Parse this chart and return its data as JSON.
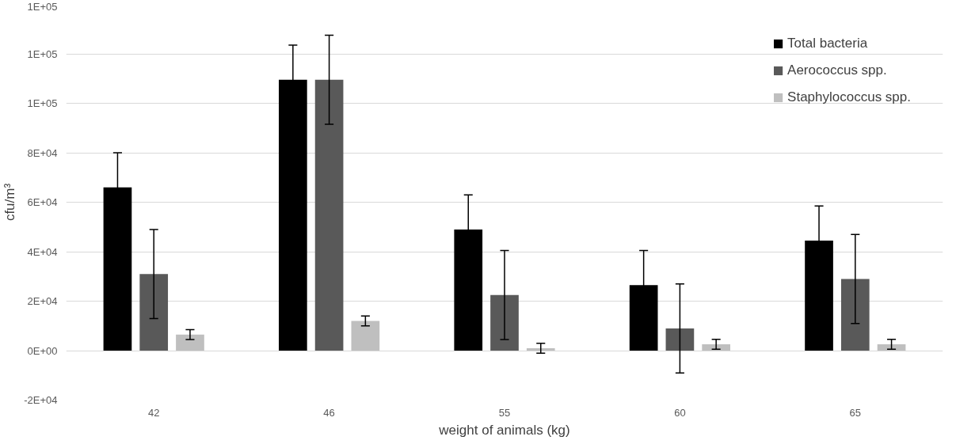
{
  "chart_data": {
    "type": "bar",
    "xlabel": "weight of animals (kg)",
    "ylabel": "cfu/m³",
    "categories": [
      "42",
      "46",
      "55",
      "60",
      "65"
    ],
    "series": [
      {
        "name": "Total bacteria",
        "color": "#000000",
        "values": [
          66000,
          109500,
          49000,
          26500,
          44500
        ],
        "errors": [
          14000,
          14000,
          14000,
          14000,
          14000
        ]
      },
      {
        "name": "Aerococcus spp.",
        "color": "#595959",
        "values": [
          31000,
          109500,
          22500,
          9000,
          29000
        ],
        "errors": [
          18000,
          18000,
          18000,
          18000,
          18000
        ]
      },
      {
        "name": "Staphylococcus spp.",
        "color": "#bfbfbf",
        "values": [
          6500,
          12000,
          1000,
          2600,
          2600
        ],
        "errors": [
          2000,
          2000,
          2000,
          2000,
          2000
        ]
      }
    ],
    "ylim": [
      -20000,
      140000
    ],
    "yticks": [
      {
        "value": -20000,
        "label": "-2E+04"
      },
      {
        "value": 0,
        "label": "0E+00"
      },
      {
        "value": 20000,
        "label": "2E+04"
      },
      {
        "value": 40000,
        "label": "4E+04"
      },
      {
        "value": 60000,
        "label": "6E+04"
      },
      {
        "value": 80000,
        "label": "8E+04"
      },
      {
        "value": 100000,
        "label": "1E+05"
      },
      {
        "value": 120000,
        "label": "1E+05"
      },
      {
        "value": 140000,
        "label": "1E+05"
      }
    ],
    "grid": "y",
    "legend": "top right"
  }
}
